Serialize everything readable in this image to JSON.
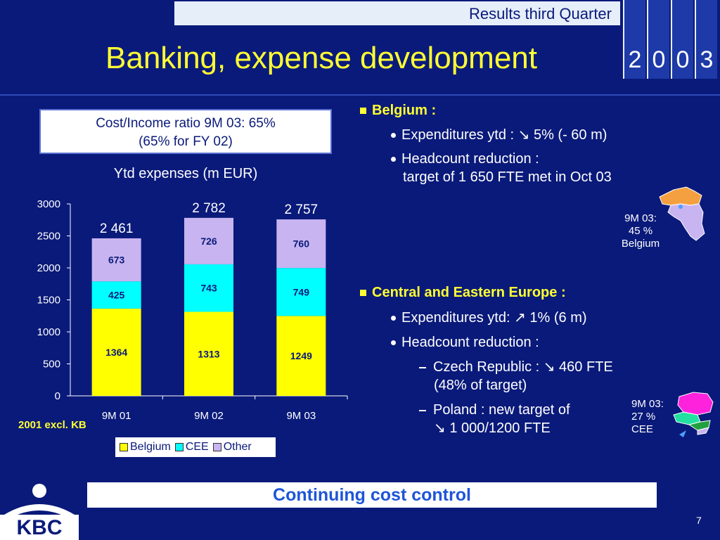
{
  "header": {
    "label": "Results third Quarter",
    "year_digits": [
      "2",
      "0",
      "0",
      "3"
    ],
    "title": "Banking, expense development"
  },
  "ratio_box": {
    "line1": "Cost/Income ratio 9M 03: 65%",
    "line2": "(65% for FY 02)"
  },
  "chart_data": {
    "type": "bar",
    "stacked": true,
    "title": "Ytd expenses (m EUR)",
    "categories": [
      "9M 01",
      "9M 02",
      "9M 03"
    ],
    "series": [
      {
        "name": "Belgium",
        "values": [
          1364,
          1313,
          1249
        ],
        "color": "#ffff00"
      },
      {
        "name": "CEE",
        "values": [
          425,
          743,
          749
        ],
        "color": "#00ffff"
      },
      {
        "name": "Other",
        "values": [
          673,
          726,
          760
        ],
        "color": "#c8b4f0"
      }
    ],
    "totals": [
      "2 461",
      "2 782",
      "2 757"
    ],
    "y_ticks": [
      "3000",
      "2500",
      "2000",
      "1500",
      "1000",
      "500",
      "0"
    ],
    "ylim": [
      0,
      3000
    ],
    "note": "2001 excl. KB"
  },
  "belgium": {
    "heading": "Belgium :",
    "bullet1": "Expenditures ytd : ↘ 5% (- 60 m)",
    "bullet2_line1": "Headcount reduction :",
    "bullet2_line2": "target of 1 650 FTE met in Oct 03",
    "map_label_l1": "9M 03:",
    "map_label_l2": "45 %",
    "map_label_l3": "Belgium"
  },
  "cee": {
    "heading": "Central and Eastern Europe :",
    "bullet1": "Expenditures ytd: ↗ 1% (6 m)",
    "bullet2": "Headcount reduction :",
    "sub1_line1": "Czech Republic : ↘ 460 FTE",
    "sub1_line2": "(48% of target)",
    "sub2_line1": "Poland : new target of",
    "sub2_line2": "↘ 1 000/1200 FTE",
    "map_label_l1": "9M 03:",
    "map_label_l2": "27 %",
    "map_label_l3": "CEE"
  },
  "footer": {
    "banner": "Continuing cost control",
    "page": "7",
    "logo_text": "KBC"
  }
}
